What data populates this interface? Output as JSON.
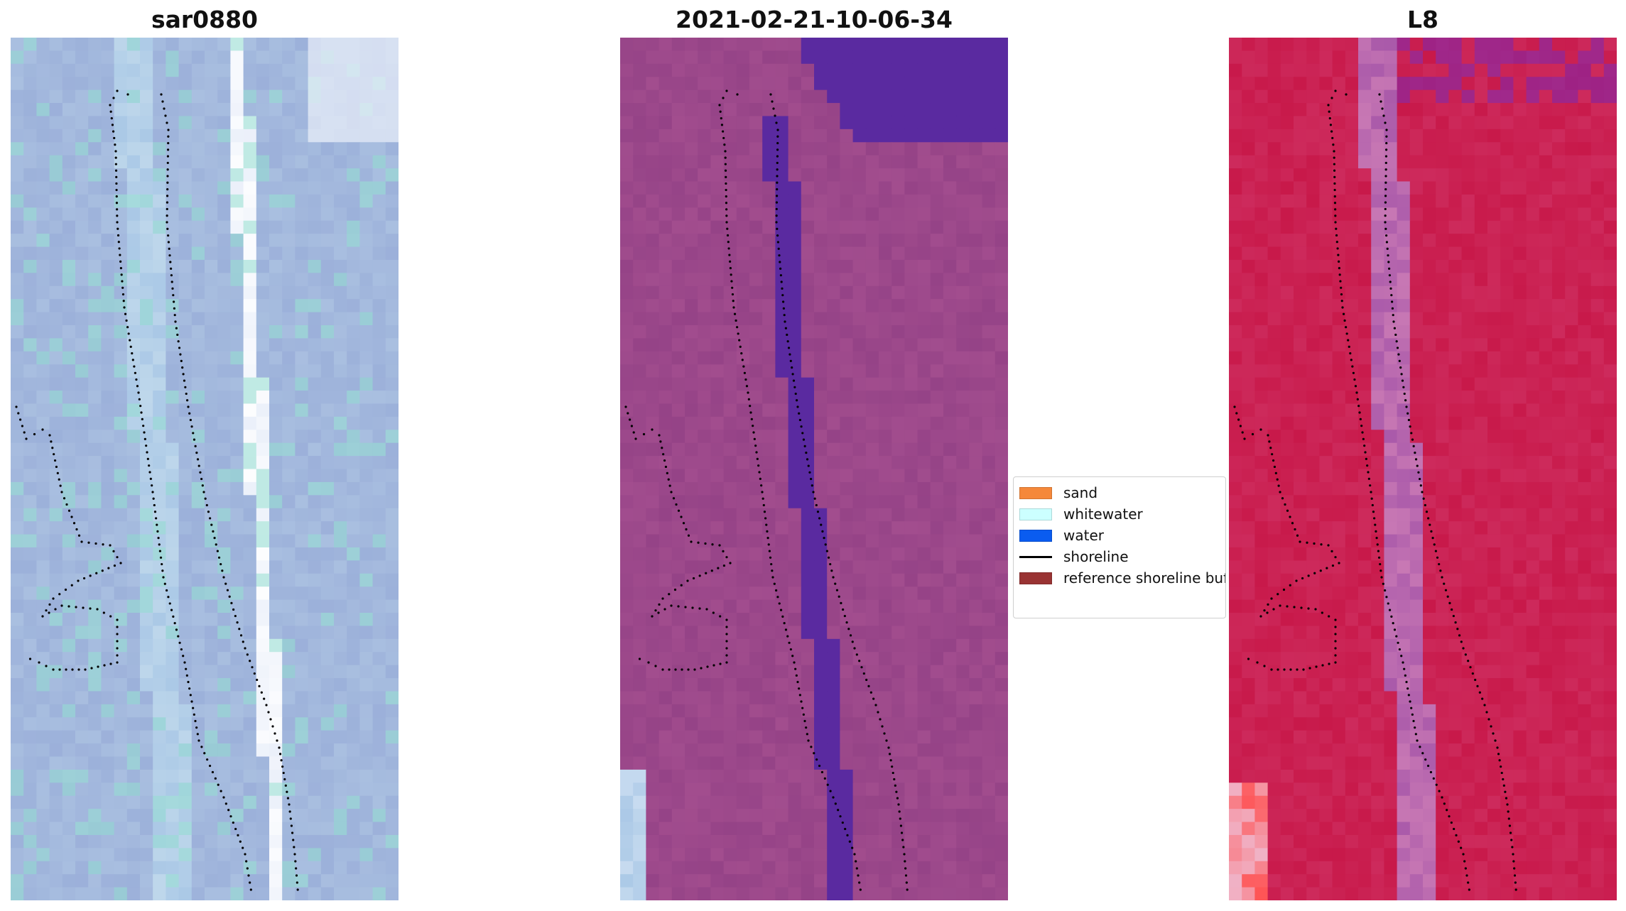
{
  "panels": [
    {
      "title": "sar0880",
      "style": "sar"
    },
    {
      "title": "2021-02-21-10-06-34",
      "style": "classified"
    },
    {
      "title": "L8",
      "style": "l8"
    }
  ],
  "legend": {
    "items": [
      {
        "label": "sand",
        "type": "patch",
        "color": "#f5883a"
      },
      {
        "label": "whitewater",
        "type": "patch",
        "color": "#ccffff"
      },
      {
        "label": "water",
        "type": "patch",
        "color": "#0a5cf0"
      },
      {
        "label": "shoreline",
        "type": "line",
        "color": "#000000"
      },
      {
        "label": "reference shoreline buffer",
        "type": "patch",
        "color": "#993333"
      }
    ]
  },
  "colors": {
    "sar_base": "#a9bfe0",
    "classified_base": "#a24d8e",
    "classified_water": "#5a2aa0",
    "l8_base": "#c8194a",
    "shoreline_dots": "#000000"
  }
}
